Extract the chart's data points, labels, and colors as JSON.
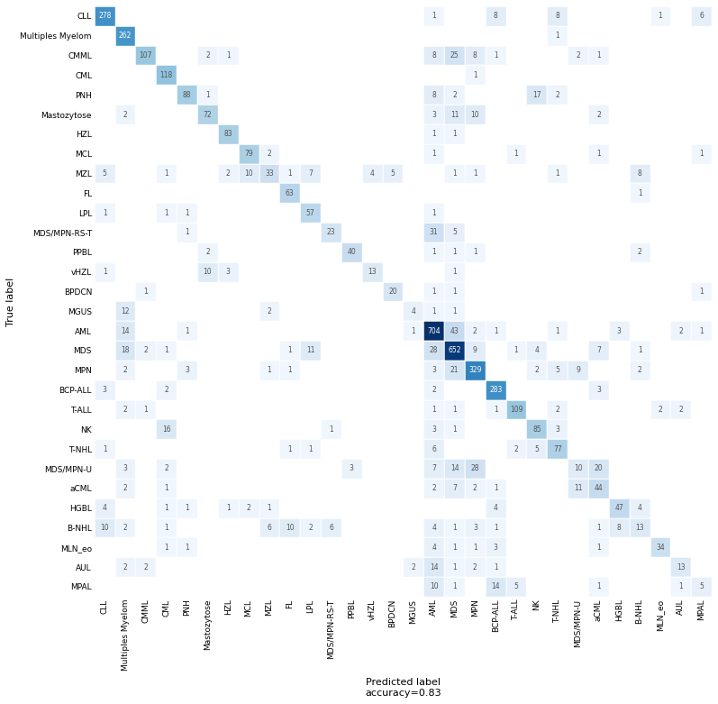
{
  "labels": [
    "CLL",
    "Multiples Myelom",
    "CMML",
    "CML",
    "PNH",
    "Mastozytose",
    "HZL",
    "MCL",
    "MZL",
    "FL",
    "LPL",
    "MDS/MPN-RS-T",
    "PPBL",
    "vHZL",
    "BPDCN",
    "MGUS",
    "AML",
    "MDS",
    "MPN",
    "BCP-ALL",
    "T-ALL",
    "NK",
    "T-NHL",
    "MDS/MPN-U",
    "aCML",
    "HGBL",
    "B-NHL",
    "MLN_eo",
    "AUL",
    "MPAL"
  ],
  "title": "Predicted label\naccuracy=0.83",
  "ylabel": "True label",
  "matrix": [
    [
      278,
      0,
      0,
      0,
      0,
      0,
      0,
      0,
      0,
      0,
      0,
      0,
      0,
      0,
      0,
      0,
      1,
      0,
      0,
      8,
      0,
      0,
      8,
      0,
      0,
      0,
      0,
      1,
      0,
      6
    ],
    [
      0,
      262,
      0,
      0,
      0,
      0,
      0,
      0,
      0,
      0,
      0,
      0,
      0,
      0,
      0,
      0,
      0,
      0,
      0,
      0,
      0,
      0,
      1,
      0,
      0,
      0,
      0,
      0,
      0,
      0
    ],
    [
      0,
      0,
      107,
      0,
      0,
      2,
      1,
      0,
      0,
      0,
      0,
      0,
      0,
      0,
      0,
      0,
      8,
      25,
      8,
      1,
      0,
      0,
      0,
      2,
      1,
      0,
      0,
      0,
      0,
      0
    ],
    [
      0,
      0,
      0,
      118,
      0,
      0,
      0,
      0,
      0,
      0,
      0,
      0,
      0,
      0,
      0,
      0,
      0,
      0,
      1,
      0,
      0,
      0,
      0,
      0,
      0,
      0,
      0,
      0,
      0,
      0
    ],
    [
      0,
      0,
      0,
      0,
      88,
      1,
      0,
      0,
      0,
      0,
      0,
      0,
      0,
      0,
      0,
      0,
      8,
      2,
      0,
      0,
      0,
      17,
      2,
      0,
      0,
      0,
      0,
      0,
      0,
      0
    ],
    [
      0,
      2,
      0,
      0,
      0,
      72,
      0,
      0,
      0,
      0,
      0,
      0,
      0,
      0,
      0,
      0,
      3,
      11,
      10,
      0,
      0,
      0,
      0,
      0,
      2,
      0,
      0,
      0,
      0,
      0
    ],
    [
      0,
      0,
      0,
      0,
      0,
      0,
      83,
      0,
      0,
      0,
      0,
      0,
      0,
      0,
      0,
      0,
      1,
      1,
      0,
      0,
      0,
      0,
      0,
      0,
      0,
      0,
      0,
      0,
      0,
      0
    ],
    [
      0,
      0,
      0,
      0,
      0,
      0,
      0,
      79,
      2,
      0,
      0,
      0,
      0,
      0,
      0,
      0,
      1,
      0,
      0,
      0,
      1,
      0,
      0,
      0,
      1,
      0,
      0,
      0,
      0,
      1
    ],
    [
      5,
      0,
      0,
      1,
      0,
      0,
      2,
      10,
      33,
      1,
      7,
      0,
      0,
      4,
      5,
      0,
      0,
      1,
      1,
      0,
      0,
      0,
      1,
      0,
      0,
      0,
      8,
      0,
      0,
      0
    ],
    [
      0,
      0,
      0,
      0,
      0,
      0,
      0,
      0,
      0,
      63,
      0,
      0,
      0,
      0,
      0,
      0,
      0,
      0,
      0,
      0,
      0,
      0,
      0,
      0,
      0,
      0,
      1,
      0,
      0,
      0
    ],
    [
      1,
      0,
      0,
      1,
      1,
      0,
      0,
      0,
      0,
      0,
      57,
      0,
      0,
      0,
      0,
      0,
      1,
      0,
      0,
      0,
      0,
      0,
      0,
      0,
      0,
      0,
      0,
      0,
      0,
      0
    ],
    [
      0,
      0,
      0,
      0,
      1,
      0,
      0,
      0,
      0,
      0,
      0,
      23,
      0,
      0,
      0,
      0,
      31,
      5,
      0,
      0,
      0,
      0,
      0,
      0,
      0,
      0,
      0,
      0,
      0,
      0
    ],
    [
      0,
      0,
      0,
      0,
      0,
      2,
      0,
      0,
      0,
      0,
      0,
      0,
      40,
      0,
      0,
      0,
      1,
      1,
      1,
      0,
      0,
      0,
      0,
      0,
      0,
      0,
      2,
      0,
      0,
      0
    ],
    [
      1,
      0,
      0,
      0,
      0,
      10,
      3,
      0,
      0,
      0,
      0,
      0,
      0,
      13,
      0,
      0,
      0,
      1,
      0,
      0,
      0,
      0,
      0,
      0,
      0,
      0,
      0,
      0,
      0,
      0
    ],
    [
      0,
      0,
      1,
      0,
      0,
      0,
      0,
      0,
      0,
      0,
      0,
      0,
      0,
      0,
      20,
      0,
      1,
      1,
      0,
      0,
      0,
      0,
      0,
      0,
      0,
      0,
      0,
      0,
      0,
      1
    ],
    [
      0,
      12,
      0,
      0,
      0,
      0,
      0,
      0,
      2,
      0,
      0,
      0,
      0,
      0,
      0,
      4,
      1,
      1,
      0,
      0,
      0,
      0,
      0,
      0,
      0,
      0,
      0,
      0,
      0,
      0
    ],
    [
      0,
      14,
      0,
      0,
      1,
      0,
      0,
      0,
      0,
      0,
      0,
      0,
      0,
      0,
      0,
      1,
      704,
      43,
      2,
      1,
      0,
      0,
      1,
      0,
      0,
      3,
      0,
      0,
      2,
      1
    ],
    [
      0,
      18,
      2,
      1,
      0,
      0,
      0,
      0,
      0,
      1,
      11,
      0,
      0,
      0,
      0,
      0,
      28,
      652,
      9,
      0,
      1,
      4,
      0,
      0,
      7,
      0,
      1,
      0,
      0,
      0
    ],
    [
      0,
      2,
      0,
      0,
      3,
      0,
      0,
      0,
      1,
      1,
      0,
      0,
      0,
      0,
      0,
      0,
      3,
      21,
      329,
      0,
      0,
      2,
      5,
      9,
      0,
      0,
      2,
      0,
      0,
      0
    ],
    [
      3,
      0,
      0,
      2,
      0,
      0,
      0,
      0,
      0,
      0,
      0,
      0,
      0,
      0,
      0,
      0,
      2,
      0,
      0,
      283,
      0,
      0,
      0,
      0,
      3,
      0,
      0,
      0,
      0,
      0
    ],
    [
      0,
      2,
      1,
      0,
      0,
      0,
      0,
      0,
      0,
      0,
      0,
      0,
      0,
      0,
      0,
      0,
      1,
      1,
      0,
      1,
      109,
      0,
      2,
      0,
      0,
      0,
      0,
      2,
      2,
      0
    ],
    [
      0,
      0,
      0,
      16,
      0,
      0,
      0,
      0,
      0,
      0,
      0,
      1,
      0,
      0,
      0,
      0,
      3,
      1,
      0,
      0,
      0,
      85,
      3,
      0,
      0,
      0,
      0,
      0,
      0,
      0
    ],
    [
      1,
      0,
      0,
      0,
      0,
      0,
      0,
      0,
      0,
      1,
      1,
      0,
      0,
      0,
      0,
      0,
      6,
      0,
      0,
      0,
      2,
      5,
      77,
      0,
      0,
      0,
      0,
      0,
      0,
      0
    ],
    [
      0,
      3,
      0,
      2,
      0,
      0,
      0,
      0,
      0,
      0,
      0,
      0,
      3,
      0,
      0,
      0,
      7,
      14,
      28,
      0,
      0,
      0,
      0,
      10,
      20,
      0,
      0,
      0,
      0,
      0
    ],
    [
      0,
      2,
      0,
      1,
      0,
      0,
      0,
      0,
      0,
      0,
      0,
      0,
      0,
      0,
      0,
      0,
      2,
      7,
      2,
      1,
      0,
      0,
      0,
      11,
      44,
      0,
      0,
      0,
      0,
      0
    ],
    [
      4,
      0,
      0,
      1,
      1,
      0,
      1,
      2,
      1,
      0,
      0,
      0,
      0,
      0,
      0,
      0,
      0,
      0,
      0,
      4,
      0,
      0,
      0,
      0,
      0,
      47,
      4,
      0,
      0,
      0
    ],
    [
      10,
      2,
      0,
      1,
      0,
      0,
      0,
      0,
      6,
      10,
      2,
      6,
      0,
      0,
      0,
      0,
      4,
      1,
      3,
      1,
      0,
      0,
      0,
      0,
      1,
      8,
      13,
      0,
      0,
      0
    ],
    [
      0,
      0,
      0,
      1,
      1,
      0,
      0,
      0,
      0,
      0,
      0,
      0,
      0,
      0,
      0,
      0,
      4,
      1,
      1,
      3,
      0,
      0,
      0,
      0,
      1,
      0,
      0,
      34,
      0,
      0
    ],
    [
      0,
      2,
      2,
      0,
      0,
      0,
      0,
      0,
      0,
      0,
      0,
      0,
      0,
      0,
      0,
      2,
      14,
      1,
      2,
      1,
      0,
      0,
      0,
      0,
      0,
      0,
      0,
      0,
      13,
      0
    ],
    [
      0,
      0,
      0,
      0,
      0,
      0,
      0,
      0,
      0,
      0,
      0,
      0,
      0,
      0,
      0,
      0,
      10,
      1,
      0,
      14,
      5,
      0,
      0,
      0,
      1,
      0,
      0,
      0,
      1,
      5
    ]
  ],
  "figsize": [
    7.97,
    7.81
  ],
  "dpi": 100,
  "cell_fontsize": 5.5,
  "label_fontsize": 6.5,
  "title_fontsize": 8
}
